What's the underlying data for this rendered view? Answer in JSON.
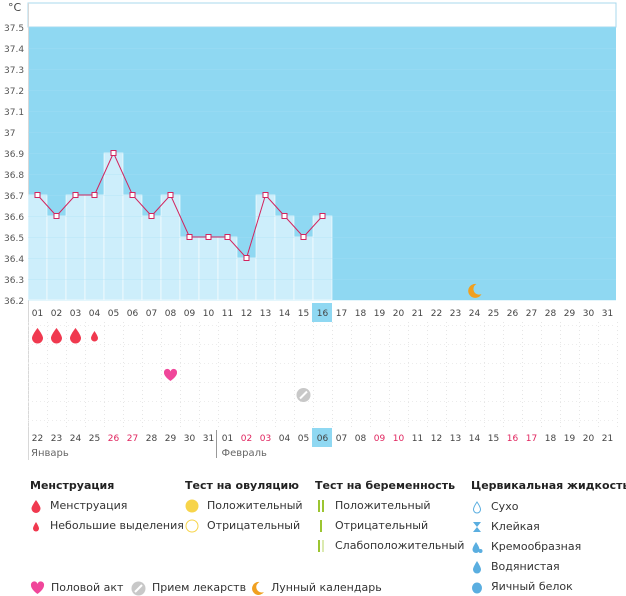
{
  "chart_data": {
    "type": "line",
    "unit_label": "°C",
    "y_ticks": [
      "37.5",
      "37.4",
      "37.3",
      "37.2",
      "37.1",
      "37",
      "36.9",
      "36.8",
      "36.7",
      "36.6",
      "36.5",
      "36.4",
      "36.3",
      "36.2"
    ],
    "ylim": [
      36.2,
      37.5
    ],
    "cycle_days": [
      "01",
      "02",
      "03",
      "04",
      "05",
      "06",
      "07",
      "08",
      "09",
      "10",
      "11",
      "12",
      "13",
      "14",
      "15",
      "16",
      "17",
      "18",
      "19",
      "20",
      "21",
      "22",
      "23",
      "24",
      "25",
      "26",
      "27",
      "28",
      "29",
      "30",
      "31"
    ],
    "temperatures": [
      36.7,
      36.6,
      36.7,
      36.7,
      36.9,
      36.7,
      36.6,
      36.7,
      36.5,
      36.5,
      36.5,
      36.4,
      36.7,
      36.6,
      36.5,
      36.6
    ],
    "current_day": "16",
    "menstruation_days": [
      {
        "day": "01",
        "type": "menstruation"
      },
      {
        "day": "02",
        "type": "menstruation"
      },
      {
        "day": "03",
        "type": "menstruation"
      },
      {
        "day": "04",
        "type": "spotting"
      }
    ],
    "intercourse_days": [
      "08"
    ],
    "medication_days": [
      "15"
    ],
    "moon_days": [
      "24"
    ],
    "dates": [
      {
        "label": "22",
        "red": false
      },
      {
        "label": "23",
        "red": false
      },
      {
        "label": "24",
        "red": false
      },
      {
        "label": "25",
        "red": false
      },
      {
        "label": "26",
        "red": true
      },
      {
        "label": "27",
        "red": true
      },
      {
        "label": "28",
        "red": false
      },
      {
        "label": "29",
        "red": false
      },
      {
        "label": "30",
        "red": false
      },
      {
        "label": "31",
        "red": false
      },
      {
        "label": "01",
        "red": false
      },
      {
        "label": "02",
        "red": true
      },
      {
        "label": "03",
        "red": true
      },
      {
        "label": "04",
        "red": false
      },
      {
        "label": "05",
        "red": false
      },
      {
        "label": "06",
        "red": false
      },
      {
        "label": "07",
        "red": false
      },
      {
        "label": "08",
        "red": false
      },
      {
        "label": "09",
        "red": true
      },
      {
        "label": "10",
        "red": true
      },
      {
        "label": "11",
        "red": false
      },
      {
        "label": "12",
        "red": false
      },
      {
        "label": "13",
        "red": false
      },
      {
        "label": "14",
        "red": false
      },
      {
        "label": "15",
        "red": false
      },
      {
        "label": "16",
        "red": true
      },
      {
        "label": "17",
        "red": true
      },
      {
        "label": "18",
        "red": false
      },
      {
        "label": "19",
        "red": false
      },
      {
        "label": "20",
        "red": false
      },
      {
        "label": "21",
        "red": false
      }
    ],
    "month_start_label": "Январь",
    "month_change_label": "Февраль",
    "month_change_index": 10
  },
  "colors": {
    "sky": "#8fd8f2",
    "bar": "#cdeefb",
    "line": "#d2245e",
    "highlight": "#8fd8f2",
    "red_text": "#e0245e",
    "drop": "#f0394f",
    "heart": "#f0469a",
    "moon": "#f0a020",
    "pill": "#c8c8c8"
  },
  "legend": {
    "menstruation": {
      "title": "Менструация",
      "items": [
        "Менструация",
        "Небольшие выделения"
      ]
    },
    "ovulation_test": {
      "title": "Тест на овуляцию",
      "items": [
        "Положительный",
        "Отрицательный"
      ]
    },
    "pregnancy_test": {
      "title": "Тест на беременность",
      "items": [
        "Положительный",
        "Отрицательный",
        "Слабоположительный"
      ]
    },
    "cervical": {
      "title": "Цервикальная жидкость",
      "items": [
        "Сухо",
        "Клейкая",
        "Кремообразная",
        "Водянистая",
        "Яичный белок"
      ]
    },
    "bottom": [
      "Половой акт",
      "Прием лекарств",
      "Лунный календарь"
    ]
  }
}
